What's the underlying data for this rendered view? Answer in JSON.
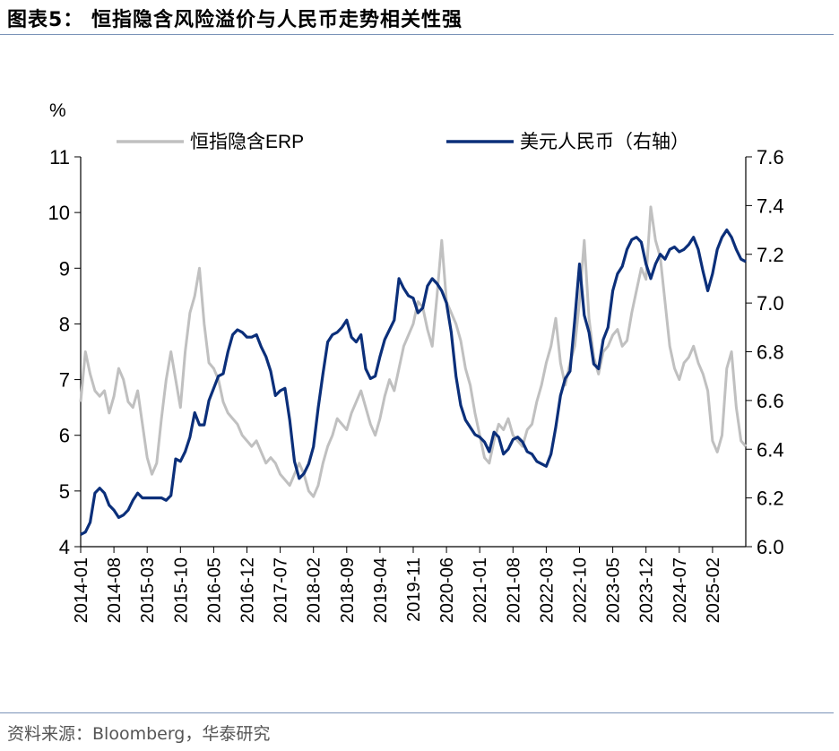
{
  "title": "图表5：  恒指隐含风险溢价与人民币走势相关性强",
  "source": "资料来源：Bloomberg，华泰研究",
  "colors": {
    "erp": "#c0c0c0",
    "usdcny": "#0b2f7a",
    "accent_rule": "#7a93b8"
  },
  "chart_data": {
    "type": "line",
    "title": "恒指隐含风险溢价与人民币走势相关性强",
    "left_axis_unit": "%",
    "ylim_left": [
      4,
      11
    ],
    "yticks_left": [
      "4",
      "5",
      "6",
      "7",
      "8",
      "9",
      "10",
      "11"
    ],
    "ylim_right": [
      6.0,
      7.6
    ],
    "yticks_right": [
      "6.0",
      "6.2",
      "6.4",
      "6.6",
      "6.8",
      "7.0",
      "7.2",
      "7.4",
      "7.6"
    ],
    "xlim_months": [
      0,
      140
    ],
    "x_tick_labels": [
      "2014-01",
      "2014-08",
      "2015-03",
      "2015-10",
      "2016-05",
      "2016-12",
      "2017-07",
      "2018-02",
      "2018-09",
      "2019-04",
      "2019-11",
      "2020-06",
      "2021-01",
      "2021-08",
      "2022-03",
      "2022-10",
      "2023-05",
      "2023-12",
      "2024-07",
      "2025-02"
    ],
    "x_tick_months": [
      0,
      7,
      14,
      21,
      28,
      35,
      42,
      49,
      56,
      63,
      70,
      77,
      84,
      91,
      98,
      105,
      112,
      119,
      126,
      133
    ],
    "legend": "top",
    "series": [
      {
        "name": "恒指隐含ERP",
        "axis": "left",
        "x_months": [
          0,
          1,
          2,
          3,
          4,
          5,
          6,
          7,
          8,
          9,
          10,
          11,
          12,
          13,
          14,
          15,
          16,
          17,
          18,
          19,
          20,
          21,
          22,
          23,
          24,
          25,
          26,
          27,
          28,
          29,
          30,
          31,
          32,
          33,
          34,
          35,
          36,
          37,
          38,
          39,
          40,
          41,
          42,
          43,
          44,
          45,
          46,
          47,
          48,
          49,
          50,
          51,
          52,
          53,
          54,
          55,
          56,
          57,
          58,
          59,
          60,
          61,
          62,
          63,
          64,
          65,
          66,
          67,
          68,
          69,
          70,
          71,
          72,
          73,
          74,
          75,
          76,
          77,
          78,
          79,
          80,
          81,
          82,
          83,
          84,
          85,
          86,
          87,
          88,
          89,
          90,
          91,
          92,
          93,
          94,
          95,
          96,
          97,
          98,
          99,
          100,
          101,
          102,
          103,
          104,
          105,
          106,
          107,
          108,
          109,
          110,
          111,
          112,
          113,
          114,
          115,
          116,
          117,
          118,
          119,
          120,
          121,
          122,
          123,
          124,
          125,
          126,
          127,
          128,
          129,
          130,
          131,
          132,
          133,
          134,
          135,
          136,
          137,
          138,
          139,
          140
        ],
        "values": [
          6.6,
          7.5,
          7.1,
          6.8,
          6.7,
          6.8,
          6.4,
          6.7,
          7.2,
          7.0,
          6.6,
          6.5,
          6.8,
          6.2,
          5.6,
          5.3,
          5.5,
          6.3,
          7.0,
          7.5,
          7.0,
          6.5,
          7.5,
          8.2,
          8.5,
          9.0,
          8.0,
          7.3,
          7.2,
          7.0,
          6.6,
          6.4,
          6.3,
          6.2,
          6.0,
          5.9,
          5.8,
          5.9,
          5.7,
          5.5,
          5.6,
          5.5,
          5.3,
          5.2,
          5.1,
          5.3,
          5.5,
          5.3,
          5.0,
          4.9,
          5.1,
          5.5,
          5.8,
          6.0,
          6.3,
          6.2,
          6.1,
          6.4,
          6.6,
          6.8,
          6.5,
          6.2,
          6.0,
          6.3,
          6.7,
          7.0,
          6.8,
          7.2,
          7.6,
          7.8,
          8.0,
          8.4,
          8.3,
          7.9,
          7.6,
          8.5,
          9.5,
          8.4,
          8.2,
          8.0,
          7.7,
          7.2,
          6.9,
          6.4,
          6.0,
          5.6,
          5.5,
          5.9,
          6.2,
          6.1,
          6.3,
          6.0,
          5.9,
          5.8,
          6.1,
          6.2,
          6.6,
          6.9,
          7.3,
          7.6,
          8.1,
          7.3,
          6.9,
          7.3,
          7.6,
          8.4,
          9.5,
          8.1,
          7.4,
          7.1,
          7.5,
          7.6,
          7.8,
          7.9,
          7.6,
          7.7,
          8.2,
          8.6,
          9.0,
          8.8,
          10.1,
          9.5,
          9.2,
          8.4,
          7.6,
          7.2,
          7.0,
          7.3,
          7.4,
          7.6,
          7.3,
          7.1,
          6.8,
          5.9,
          5.7,
          6.0,
          7.2,
          7.5,
          6.5,
          5.9,
          5.8
        ]
      },
      {
        "name": "美元人民币（右轴）",
        "axis": "right",
        "x_months": [
          0,
          1,
          2,
          3,
          4,
          5,
          6,
          7,
          8,
          9,
          10,
          11,
          12,
          13,
          14,
          15,
          16,
          17,
          18,
          19,
          20,
          21,
          22,
          23,
          24,
          25,
          26,
          27,
          28,
          29,
          30,
          31,
          32,
          33,
          34,
          35,
          36,
          37,
          38,
          39,
          40,
          41,
          42,
          43,
          44,
          45,
          46,
          47,
          48,
          49,
          50,
          51,
          52,
          53,
          54,
          55,
          56,
          57,
          58,
          59,
          60,
          61,
          62,
          63,
          64,
          65,
          66,
          67,
          68,
          69,
          70,
          71,
          72,
          73,
          74,
          75,
          76,
          77,
          78,
          79,
          80,
          81,
          82,
          83,
          84,
          85,
          86,
          87,
          88,
          89,
          90,
          91,
          92,
          93,
          94,
          95,
          96,
          97,
          98,
          99,
          100,
          101,
          102,
          103,
          104,
          105,
          106,
          107,
          108,
          109,
          110,
          111,
          112,
          113,
          114,
          115,
          116,
          117,
          118,
          119,
          120,
          121,
          122,
          123,
          124,
          125,
          126,
          127,
          128,
          129,
          130,
          131,
          132,
          133,
          134,
          135,
          136,
          137,
          138,
          139,
          140
        ],
        "values": [
          6.05,
          6.06,
          6.1,
          6.22,
          6.24,
          6.22,
          6.17,
          6.15,
          6.12,
          6.13,
          6.15,
          6.19,
          6.22,
          6.2,
          6.2,
          6.2,
          6.2,
          6.2,
          6.19,
          6.21,
          6.36,
          6.35,
          6.39,
          6.45,
          6.55,
          6.5,
          6.5,
          6.6,
          6.65,
          6.7,
          6.71,
          6.8,
          6.87,
          6.89,
          6.88,
          6.86,
          6.86,
          6.87,
          6.82,
          6.78,
          6.72,
          6.62,
          6.64,
          6.65,
          6.52,
          6.35,
          6.28,
          6.3,
          6.34,
          6.41,
          6.57,
          6.71,
          6.84,
          6.87,
          6.88,
          6.9,
          6.93,
          6.86,
          6.84,
          6.87,
          6.73,
          6.69,
          6.7,
          6.78,
          6.85,
          6.89,
          6.93,
          7.1,
          7.06,
          7.03,
          7.02,
          6.96,
          6.98,
          7.07,
          7.1,
          7.08,
          7.05,
          7.0,
          6.88,
          6.7,
          6.58,
          6.52,
          6.49,
          6.46,
          6.45,
          6.43,
          6.39,
          6.47,
          6.45,
          6.38,
          6.4,
          6.44,
          6.45,
          6.43,
          6.39,
          6.38,
          6.35,
          6.34,
          6.33,
          6.38,
          6.49,
          6.62,
          6.69,
          6.72,
          6.93,
          7.16,
          6.95,
          6.88,
          6.75,
          6.73,
          6.85,
          6.9,
          7.05,
          7.12,
          7.15,
          7.22,
          7.26,
          7.27,
          7.25,
          7.16,
          7.1,
          7.16,
          7.2,
          7.18,
          7.22,
          7.23,
          7.21,
          7.22,
          7.24,
          7.27,
          7.22,
          7.13,
          7.05,
          7.12,
          7.22,
          7.27,
          7.3,
          7.27,
          7.22,
          7.18,
          7.17
        ]
      }
    ]
  }
}
